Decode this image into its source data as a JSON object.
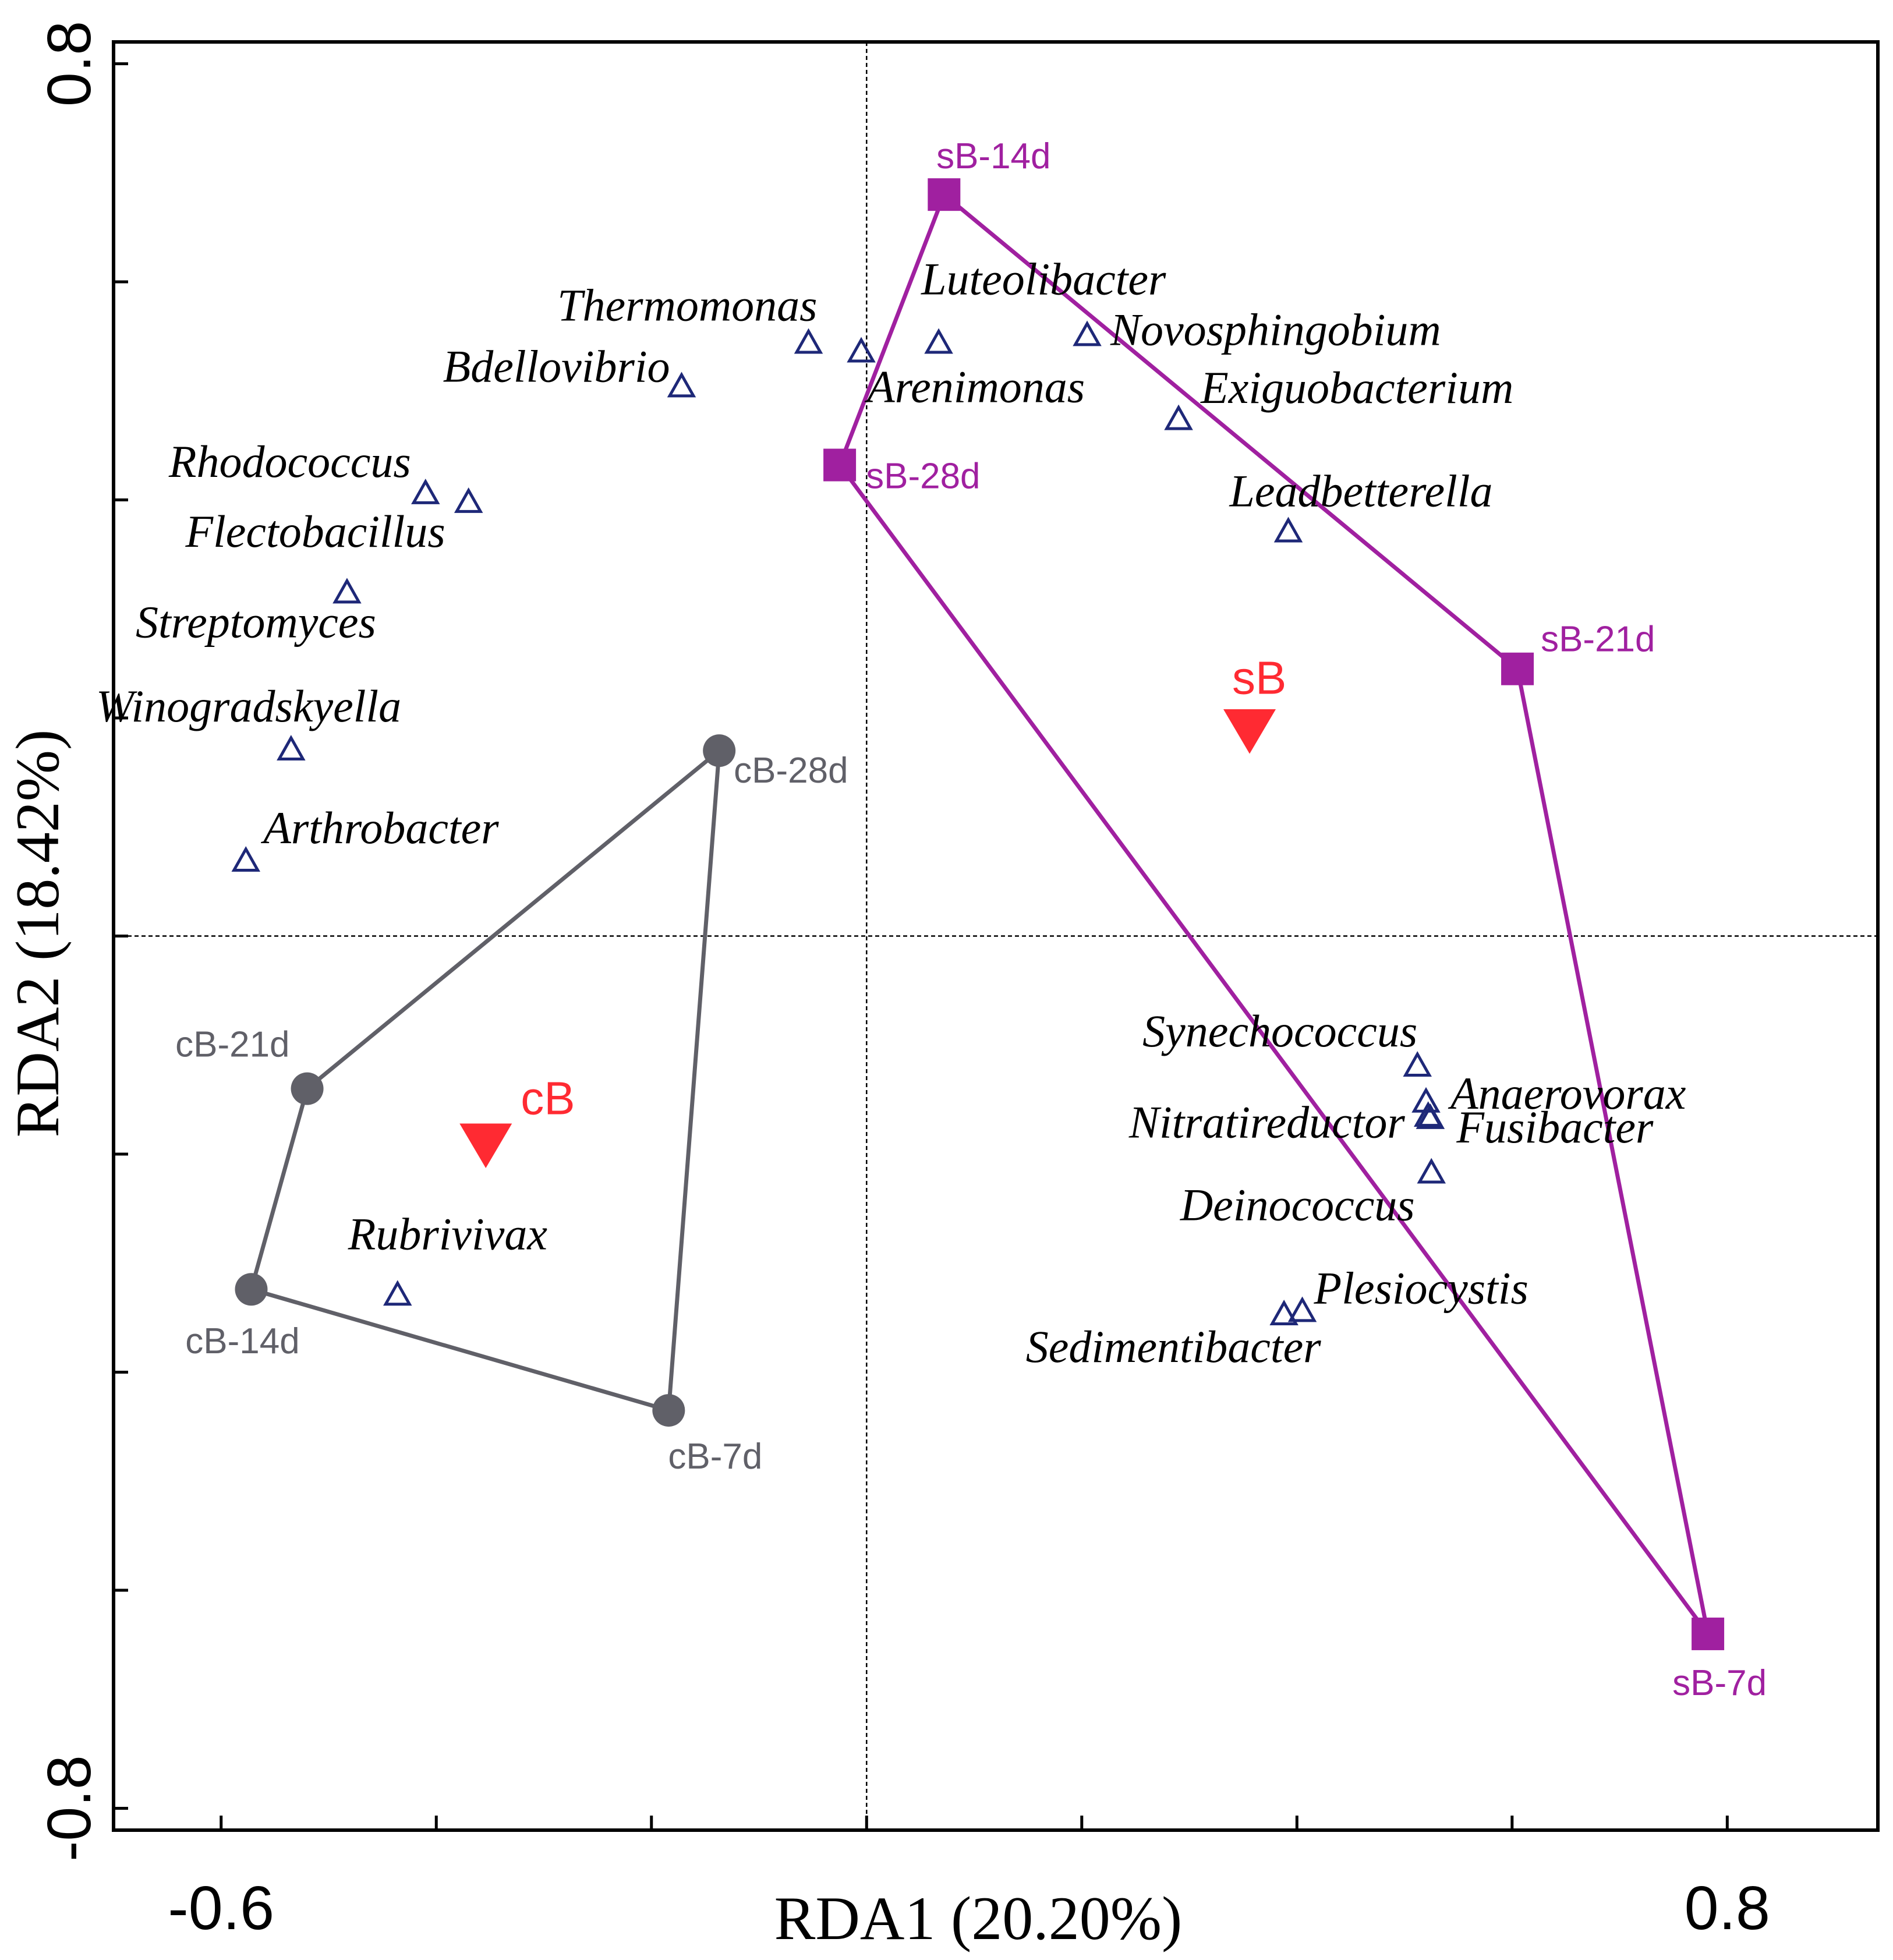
{
  "chart_data": {
    "type": "scatter",
    "xlabel": "RDA1 (20.20%)",
    "ylabel": "RDA2 (18.42%)",
    "xlim": [
      -0.7,
      0.94
    ],
    "ylim": [
      -0.82,
      0.82
    ],
    "x_ticks": [
      -0.6,
      -0.4,
      -0.2,
      0.0,
      0.2,
      0.4,
      0.6,
      0.8
    ],
    "y_ticks": [
      -0.8,
      -0.6,
      -0.4,
      -0.2,
      0.0,
      0.2,
      0.4,
      0.6,
      0.8
    ],
    "x_tick_labels": [
      {
        "value": -0.6,
        "text": "-0.6"
      },
      {
        "value": 0.8,
        "text": "0.8"
      }
    ],
    "y_tick_labels": [
      {
        "value": 0.8,
        "text": "0.8"
      },
      {
        "value": -0.8,
        "text": "-0.8"
      }
    ],
    "reference_lines": {
      "x": 0,
      "y": 0,
      "style": "dashed"
    },
    "grid": false,
    "colors": {
      "cB": "#606068",
      "sB": "#a020a0",
      "species": "#1e2878",
      "centroid": "#ff2a32"
    },
    "groups": [
      {
        "name": "cB",
        "marker": "circle",
        "hull_order": [
          "cB-28d",
          "cB-21d",
          "cB-14d",
          "cB-7d"
        ],
        "points": [
          {
            "label": "cB-28d",
            "x": -0.137,
            "y": 0.17
          },
          {
            "label": "cB-21d",
            "x": -0.52,
            "y": -0.14
          },
          {
            "label": "cB-14d",
            "x": -0.572,
            "y": -0.324
          },
          {
            "label": "cB-7d",
            "x": -0.184,
            "y": -0.435
          }
        ]
      },
      {
        "name": "sB",
        "marker": "square",
        "hull_order": [
          "sB-14d",
          "sB-21d",
          "sB-7d",
          "sB-28d"
        ],
        "points": [
          {
            "label": "sB-14d",
            "x": 0.072,
            "y": 0.68
          },
          {
            "label": "sB-28d",
            "x": -0.025,
            "y": 0.432
          },
          {
            "label": "sB-21d",
            "x": 0.605,
            "y": 0.245
          },
          {
            "label": "sB-7d",
            "x": 0.782,
            "y": -0.64
          }
        ]
      }
    ],
    "centroids": [
      {
        "label": "cB",
        "x": -0.354,
        "y": -0.19
      },
      {
        "label": "sB",
        "x": 0.356,
        "y": 0.19
      }
    ],
    "species": [
      {
        "name": "Thermomonas",
        "x": -0.054,
        "y": 0.543
      },
      {
        "name": "Bdellovibrio",
        "x": -0.172,
        "y": 0.503
      },
      {
        "name": "Luteolibacter",
        "x": 0.067,
        "y": 0.543
      },
      {
        "name": "Arenimonas",
        "x": -0.005,
        "y": 0.535
      },
      {
        "name": "Novosphingobium",
        "x": 0.205,
        "y": 0.55
      },
      {
        "name": "Exiguobacterium",
        "x": 0.29,
        "y": 0.473
      },
      {
        "name": "Leadbetterella",
        "x": 0.392,
        "y": 0.37
      },
      {
        "name": "Rhodococcus",
        "x": -0.41,
        "y": 0.405
      },
      {
        "name": "Flectobacillus",
        "x": -0.37,
        "y": 0.397
      },
      {
        "name": "Streptomyces",
        "x": -0.483,
        "y": 0.314
      },
      {
        "name": "Winogradskyella",
        "x": -0.535,
        "y": 0.17
      },
      {
        "name": "Arthrobacter",
        "x": -0.577,
        "y": 0.068
      },
      {
        "name": "Rubrivivax",
        "x": -0.436,
        "y": -0.33
      },
      {
        "name": "Synechococcus",
        "x": 0.512,
        "y": -0.12
      },
      {
        "name": "Anaerovorax",
        "x": 0.52,
        "y": -0.153
      },
      {
        "name": "Nitratireductor",
        "x": 0.522,
        "y": -0.166
      },
      {
        "name": "Fusibacter",
        "x": 0.524,
        "y": -0.168
      },
      {
        "name": "Deinococcus",
        "x": 0.525,
        "y": -0.218
      },
      {
        "name": "Plesiocystis",
        "x": 0.405,
        "y": -0.345
      },
      {
        "name": "Sedimentibacter",
        "x": 0.388,
        "y": -0.348
      }
    ]
  }
}
